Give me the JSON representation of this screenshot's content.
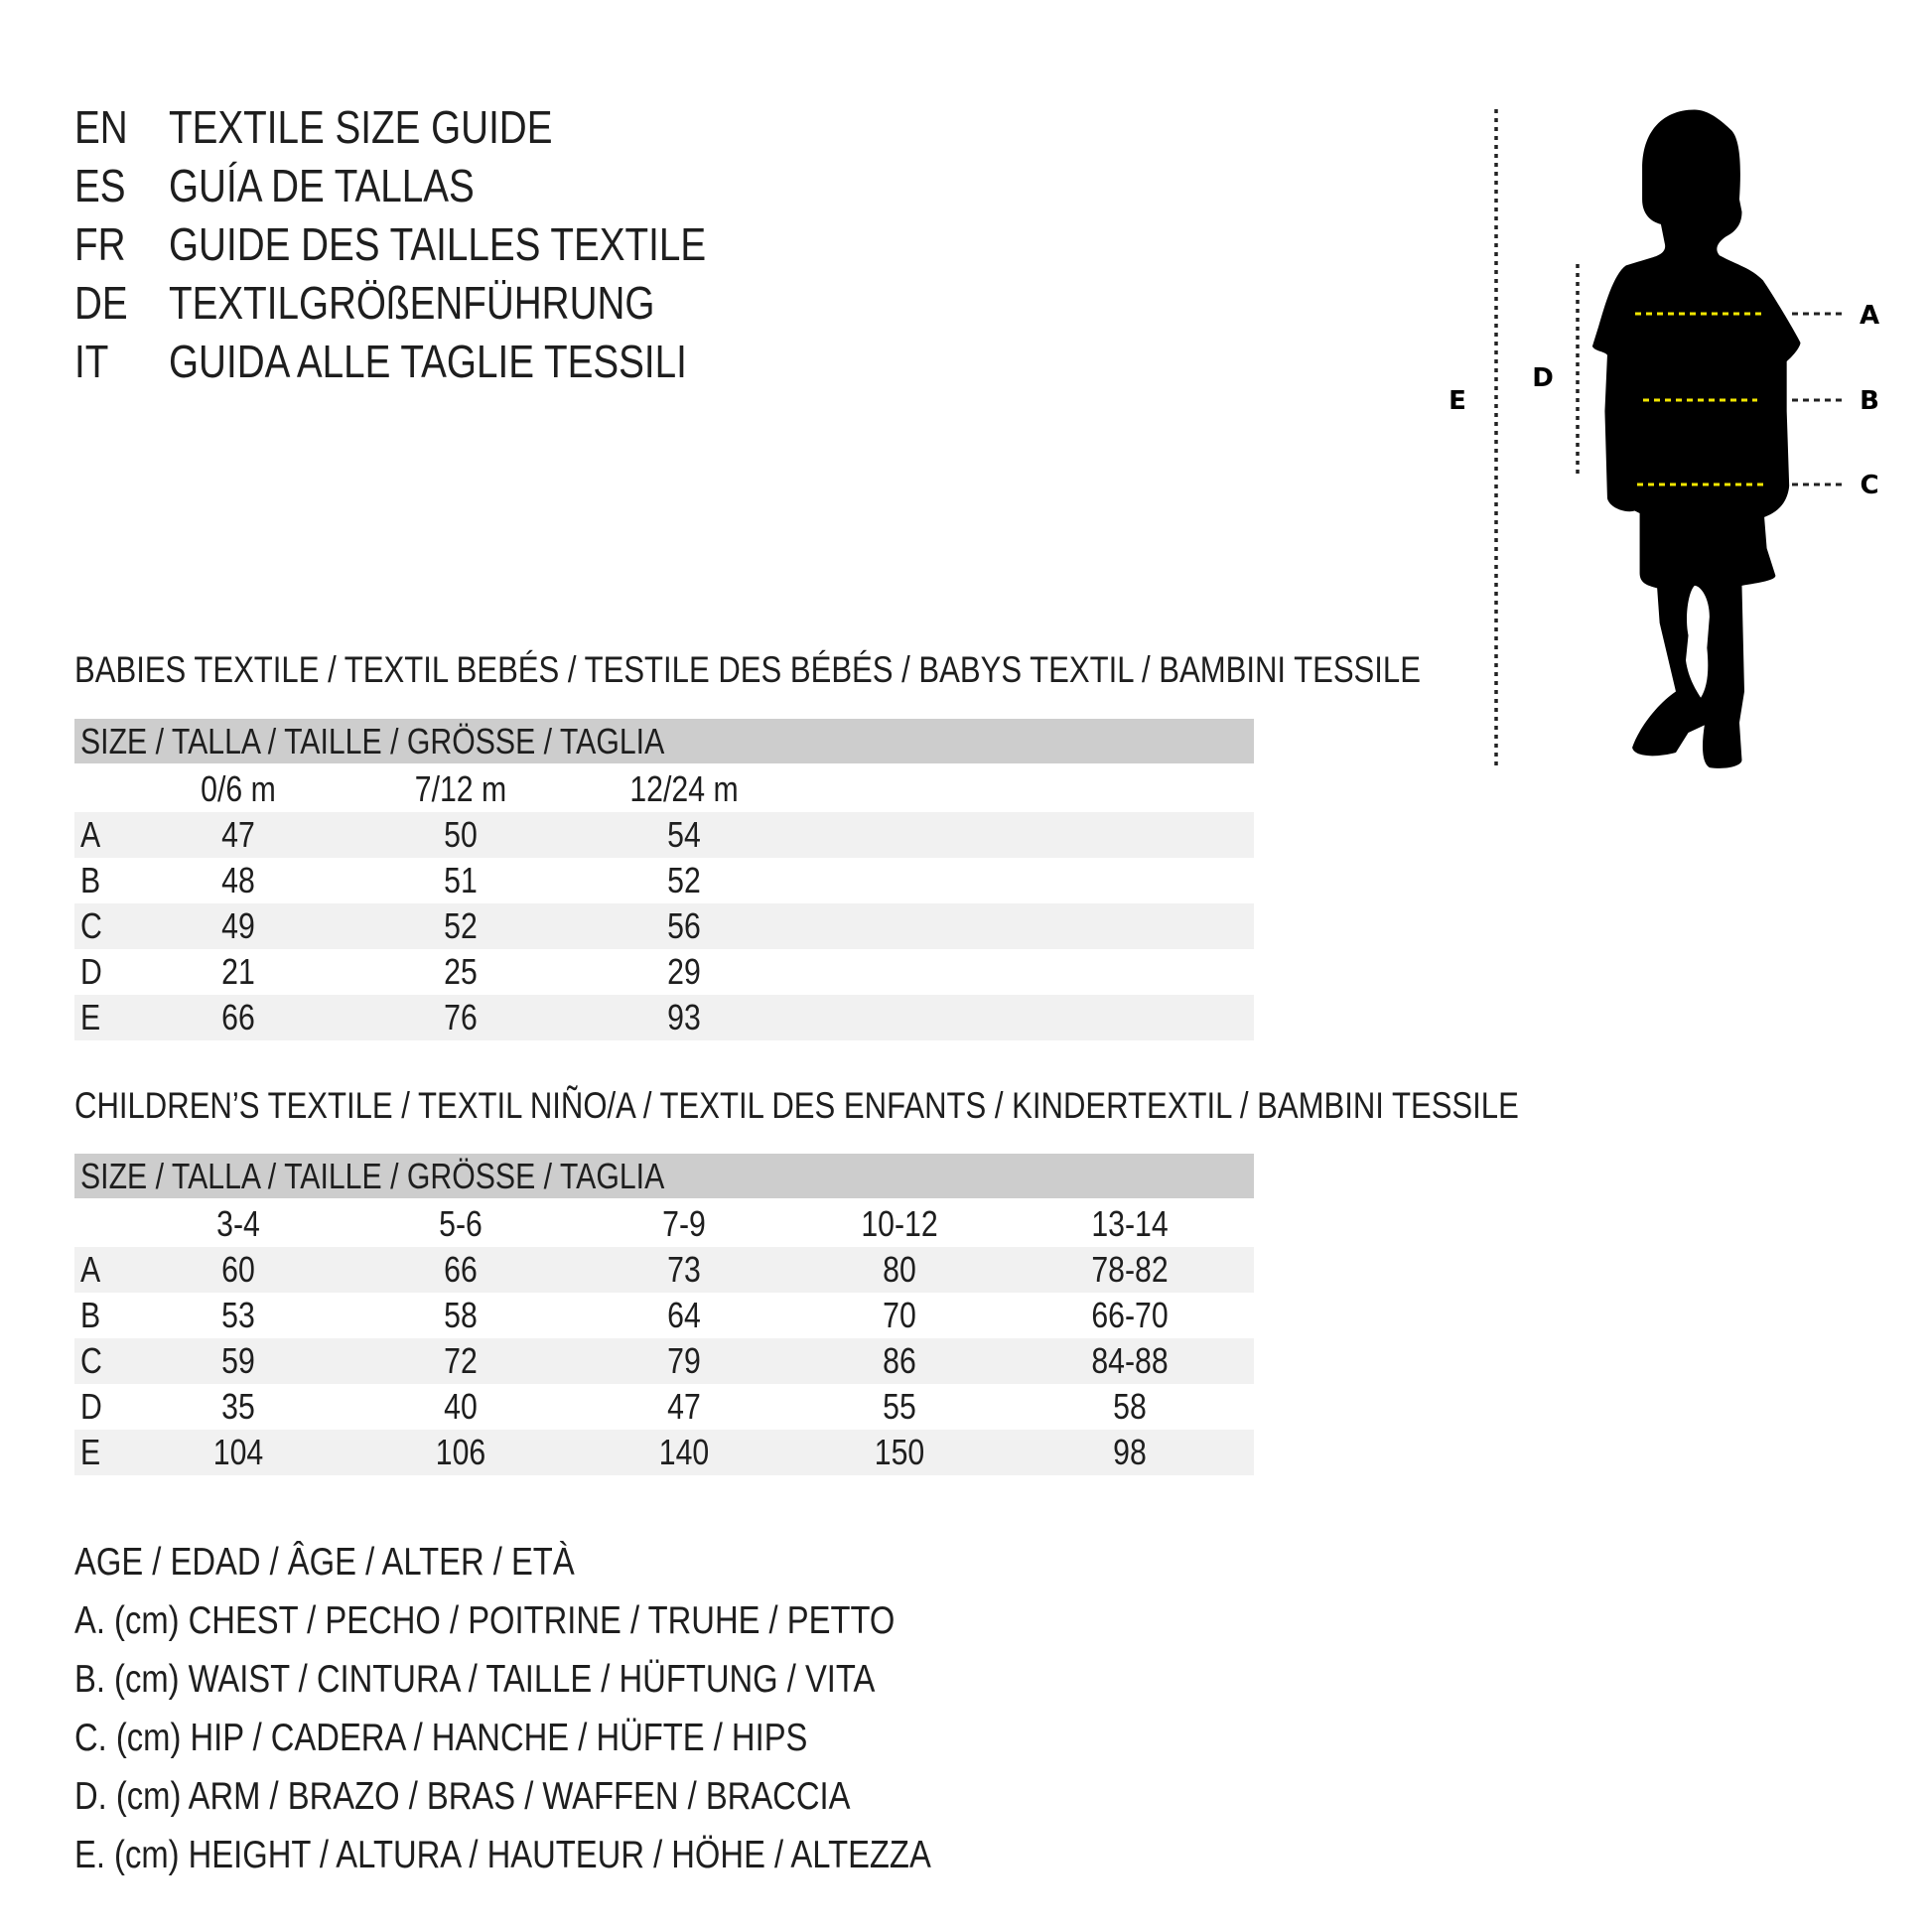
{
  "titles": [
    {
      "code": "EN",
      "text": "TEXTILE SIZE GUIDE"
    },
    {
      "code": "ES",
      "text": "GUÍA DE TALLAS"
    },
    {
      "code": "FR",
      "text": "GUIDE DES TAILLES TEXTILE"
    },
    {
      "code": "DE",
      "text": "TEXTILGRÖßENFÜHRUNG"
    },
    {
      "code": "IT",
      "text": "GUIDA ALLE TAGLIE TESSILI"
    }
  ],
  "babies": {
    "heading": "BABIES TEXTILE / TEXTIL BEBÉS / TESTILE DES BÉBÉS / BABYS TEXTIL / BAMBINI TESSILE",
    "size_header": "SIZE / TALLA / TAILLE / GRÖSSE / TAGLIA",
    "columns": [
      "0/6 m",
      "7/12 m",
      "12/24 m"
    ],
    "rows": [
      {
        "label": "A",
        "values": [
          "47",
          "50",
          "54"
        ]
      },
      {
        "label": "B",
        "values": [
          "48",
          "51",
          "52"
        ]
      },
      {
        "label": "C",
        "values": [
          "49",
          "52",
          "56"
        ]
      },
      {
        "label": "D",
        "values": [
          "21",
          "25",
          "29"
        ]
      },
      {
        "label": "E",
        "values": [
          "66",
          "76",
          "93"
        ]
      }
    ]
  },
  "children": {
    "heading": "CHILDREN’S TEXTILE / TEXTIL NIÑO/A / TEXTIL DES ENFANTS / KINDERTEXTIL / BAMBINI TESSILE",
    "size_header": "SIZE / TALLA / TAILLE / GRÖSSE / TAGLIA",
    "columns": [
      "3-4",
      "5-6",
      "7-9",
      "10-12",
      "13-14"
    ],
    "rows": [
      {
        "label": "A",
        "values": [
          "60",
          "66",
          "73",
          "80",
          "78-82"
        ]
      },
      {
        "label": "B",
        "values": [
          "53",
          "58",
          "64",
          "70",
          "66-70"
        ]
      },
      {
        "label": "C",
        "values": [
          "59",
          "72",
          "79",
          "86",
          "84-88"
        ]
      },
      {
        "label": "D",
        "values": [
          "35",
          "40",
          "47",
          "55",
          "58"
        ]
      },
      {
        "label": "E",
        "values": [
          "104",
          "106",
          "140",
          "150",
          "98"
        ]
      }
    ]
  },
  "legend": [
    "AGE / EDAD / ÂGE / ALTER / ETÀ",
    "A. (cm) CHEST / PECHO / POITRINE / TRUHE / PETTO",
    "B. (cm) WAIST / CINTURA / TAILLE / HÜFTUNG / VITA",
    "C. (cm) HIP / CADERA / HANCHE / HÜFTE / HIPS",
    "D. (cm) ARM / BRAZO / BRAS / WAFFEN / BRACCIA",
    "E. (cm) HEIGHT / ALTURA / HAUTEUR / HÖHE / ALTEZZA"
  ],
  "figure": {
    "labels": {
      "a": "A",
      "b": "B",
      "c": "C",
      "d": "D",
      "e": "E"
    },
    "measure_line_color": "#f2e600",
    "silhouette_color": "#000000"
  },
  "colors": {
    "header_band": "#cdcdcd",
    "alt_row": "#f1f1f1",
    "text": "#1e1e1e"
  }
}
